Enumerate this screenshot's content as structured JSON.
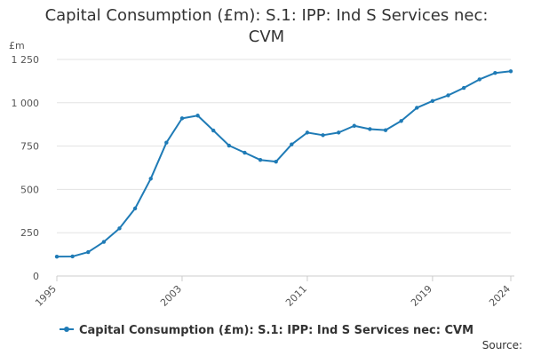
{
  "title_line1": "Capital Consumption (£m): S.1: IPP: Ind S Services nec:",
  "title_line2": "CVM",
  "source_label": "Source:",
  "chart_data": {
    "type": "line",
    "title": "Capital Consumption (£m): S.1: IPP: Ind S Services nec: CVM",
    "ylabel": "£m",
    "xlabel": "",
    "ylim": [
      0,
      1250
    ],
    "xlim": [
      1995,
      2024
    ],
    "yticks": [
      0,
      250,
      500,
      750,
      1000,
      1250
    ],
    "ytick_labels": [
      "0",
      "250",
      "500",
      "750",
      "1 000",
      "1 250"
    ],
    "xticks": [
      1995,
      2003,
      2011,
      2019,
      2024
    ],
    "xtick_labels": [
      "1995",
      "2003",
      "2011",
      "2019",
      "2024"
    ],
    "grid": true,
    "legend_position": "bottom",
    "series": [
      {
        "name": "Capital Consumption (£m): S.1: IPP: Ind S Services nec: CVM",
        "color": "#1f7bb6",
        "x": [
          1995,
          1996,
          1997,
          1998,
          1999,
          2000,
          2001,
          2002,
          2003,
          2004,
          2005,
          2006,
          2007,
          2008,
          2009,
          2010,
          2011,
          2012,
          2013,
          2014,
          2015,
          2016,
          2017,
          2018,
          2019,
          2020,
          2021,
          2022,
          2023,
          2024
        ],
        "values": [
          112,
          113,
          138,
          197,
          275,
          390,
          562,
          770,
          910,
          926,
          840,
          753,
          712,
          670,
          660,
          760,
          828,
          813,
          828,
          867,
          848,
          842,
          895,
          971,
          1010,
          1043,
          1086,
          1135,
          1172,
          1182
        ]
      }
    ]
  }
}
